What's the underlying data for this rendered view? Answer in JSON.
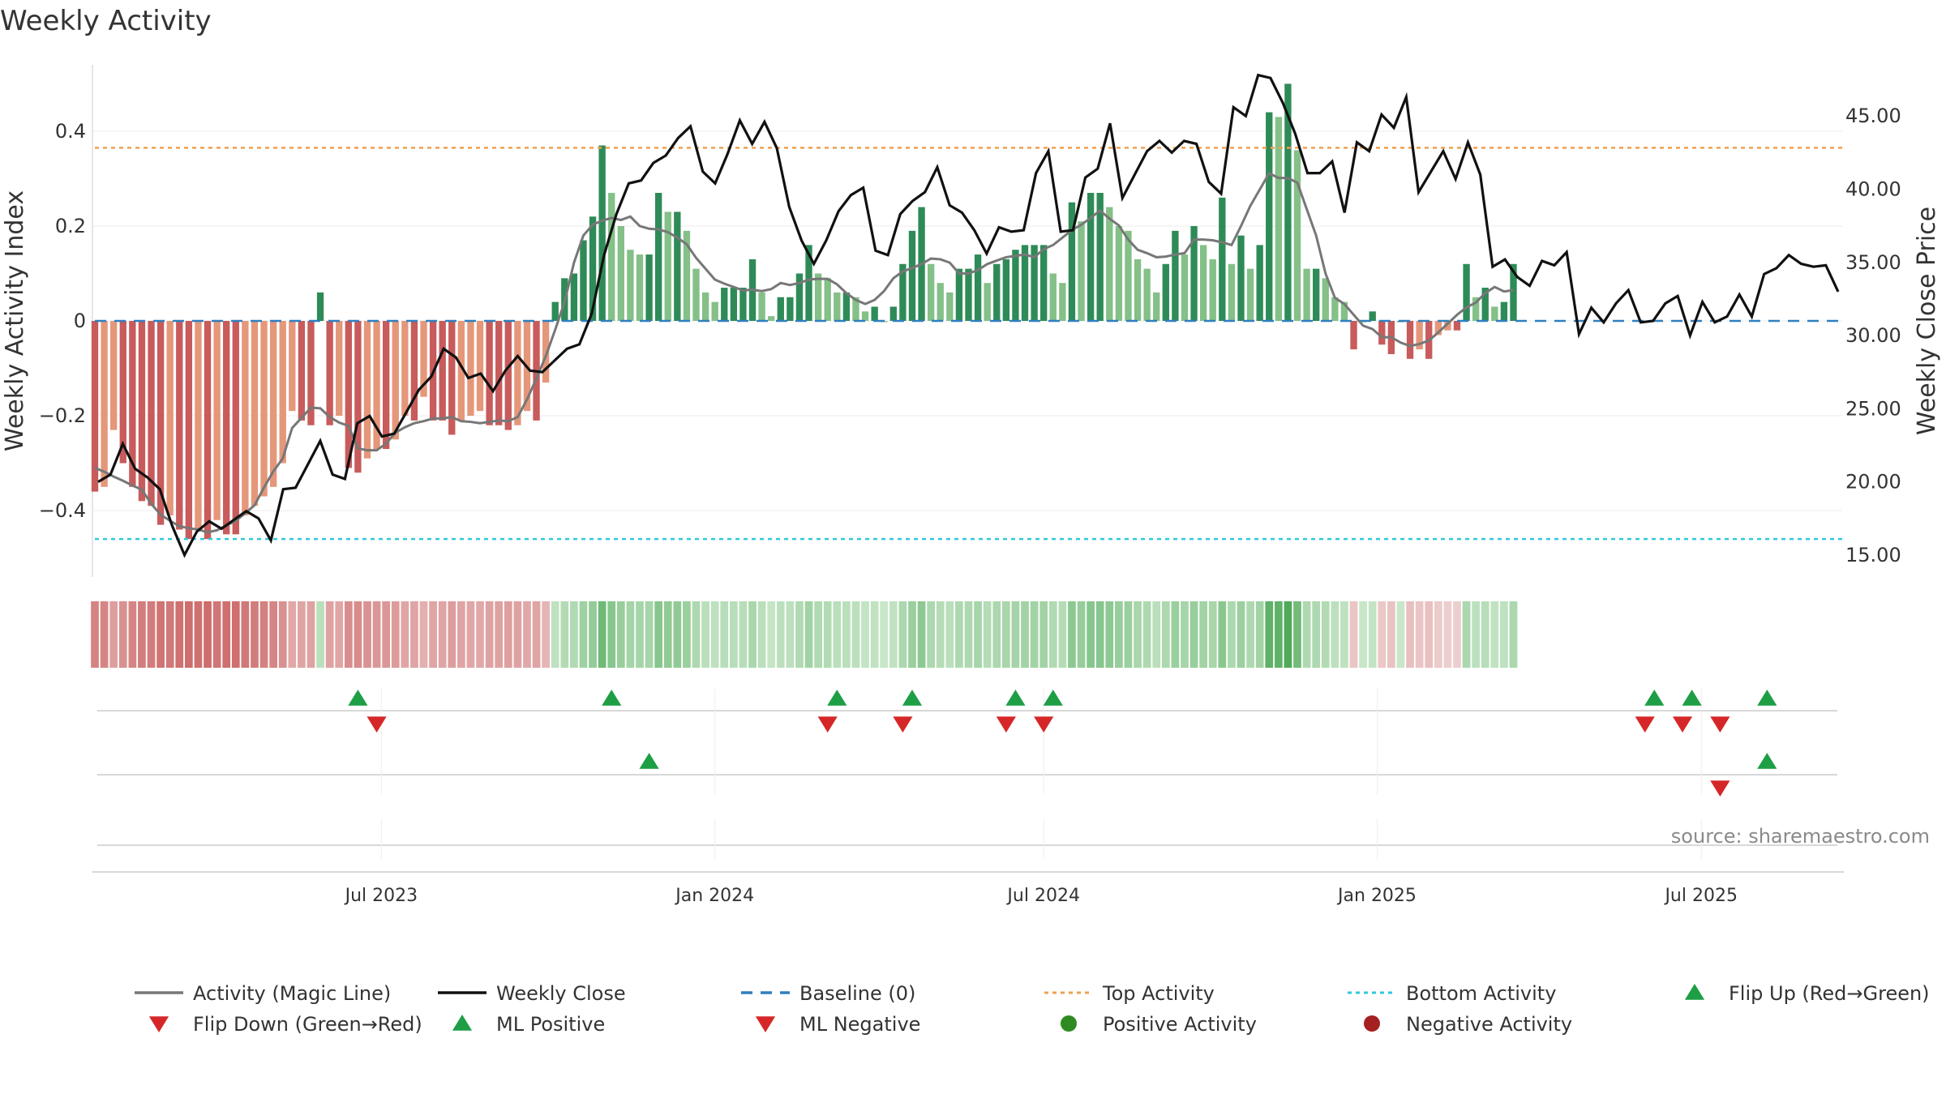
{
  "title": "Weekly Activity",
  "source": "source: sharemaestro.com",
  "chart_data": {
    "type": "bar",
    "y_left": {
      "label": "Weekly Activity Index",
      "range": [
        -0.54,
        0.54
      ],
      "ticks": [
        {
          "v": 0.4,
          "t": "0.4"
        },
        {
          "v": 0.2,
          "t": "0.2"
        },
        {
          "v": 0,
          "t": "0"
        },
        {
          "v": -0.2,
          "t": "−0.2"
        },
        {
          "v": -0.4,
          "t": "−0.4"
        }
      ]
    },
    "y_right": {
      "label": "Weekly Close Price",
      "range": [
        13.5,
        48.5
      ],
      "ticks": [
        {
          "v": 45,
          "t": "45.00"
        },
        {
          "v": 40,
          "t": "40.00"
        },
        {
          "v": 35,
          "t": "35.00"
        },
        {
          "v": 30,
          "t": "30.00"
        },
        {
          "v": 25,
          "t": "25.00"
        },
        {
          "v": 20,
          "t": "20.00"
        },
        {
          "v": 15,
          "t": "15.00"
        }
      ]
    },
    "x_ticks": [
      {
        "i": 30.5,
        "t": "Jul 2023"
      },
      {
        "i": 66,
        "t": "Jan 2024"
      },
      {
        "i": 101,
        "t": "Jul 2024"
      },
      {
        "i": 136.5,
        "t": "Jan 2025"
      },
      {
        "i": 171,
        "t": "Jul 2025"
      }
    ],
    "weeks": 187,
    "top_activity": 0.365,
    "bottom_activity": -0.46,
    "activity": [
      -0.36,
      -0.35,
      -0.23,
      -0.3,
      -0.35,
      -0.38,
      -0.39,
      -0.43,
      -0.41,
      -0.44,
      -0.46,
      -0.44,
      -0.46,
      -0.42,
      -0.45,
      -0.45,
      -0.41,
      -0.39,
      -0.37,
      -0.35,
      -0.3,
      -0.19,
      -0.21,
      -0.22,
      0.06,
      -0.22,
      -0.2,
      -0.31,
      -0.32,
      -0.29,
      -0.27,
      -0.27,
      -0.25,
      -0.2,
      -0.21,
      -0.16,
      -0.21,
      -0.21,
      -0.24,
      -0.21,
      -0.2,
      -0.19,
      -0.22,
      -0.22,
      -0.23,
      -0.22,
      -0.19,
      -0.21,
      -0.13,
      0.04,
      0.09,
      0.1,
      0.17,
      0.22,
      0.37,
      0.27,
      0.2,
      0.15,
      0.14,
      0.14,
      0.27,
      0.23,
      0.23,
      0.19,
      0.11,
      0.06,
      0.04,
      0.07,
      0.07,
      0.07,
      0.13,
      0.06,
      0.01,
      0.05,
      0.05,
      0.1,
      0.16,
      0.1,
      0.09,
      0.06,
      0.06,
      0.05,
      0.02,
      0.03,
      0.0,
      0.03,
      0.12,
      0.19,
      0.24,
      0.12,
      0.08,
      0.06,
      0.11,
      0.11,
      0.14,
      0.08,
      0.12,
      0.13,
      0.15,
      0.16,
      0.16,
      0.16,
      0.1,
      0.08,
      0.25,
      0.21,
      0.27,
      0.27,
      0.24,
      0.2,
      0.19,
      0.13,
      0.11,
      0.06,
      0.12,
      0.19,
      0.14,
      0.2,
      0.16,
      0.13,
      0.26,
      0.12,
      0.18,
      0.11,
      0.16,
      0.44,
      0.43,
      0.5,
      0.36,
      0.11,
      0.11,
      0.09,
      0.05,
      0.04,
      -0.06,
      0.0,
      0.02,
      -0.05,
      -0.07,
      0.0,
      -0.08,
      -0.06,
      -0.08,
      -0.03,
      -0.02,
      -0.02,
      0.12,
      0.05,
      0.07,
      0.03,
      0.04,
      0.12
    ],
    "colors": {
      "green_dark": "#2e8b57",
      "green_light": "#84c088",
      "red_dark": "#c85b5b",
      "red_light": "#e5977a",
      "close": "#111111",
      "magic": "#777777",
      "baseline": "#2f7fbf",
      "top": "#f0a050",
      "bottom": "#30c8e0",
      "up": "#1e9e45",
      "down": "#d62728"
    }
  },
  "markers": {
    "flip_up": [
      28,
      55,
      79,
      87,
      98,
      102,
      166,
      170,
      178
    ],
    "flip_down": [
      30,
      78,
      86,
      97,
      101,
      165,
      169,
      173
    ],
    "ml_up": [
      59,
      178
    ],
    "ml_down": [
      173
    ]
  },
  "legend": [
    {
      "label": "Activity (Magic Line)",
      "kind": "line",
      "color": "#777777"
    },
    {
      "label": "Weekly Close",
      "kind": "line",
      "color": "#111111"
    },
    {
      "label": "Baseline (0)",
      "kind": "dash",
      "color": "#2f7fbf"
    },
    {
      "label": "Top Activity",
      "kind": "dot",
      "color": "#f0a050"
    },
    {
      "label": "Bottom Activity",
      "kind": "dot",
      "color": "#30c8e0"
    },
    {
      "label": "Flip Up (Red→Green)",
      "kind": "tri-up",
      "color": "#1e9e45"
    },
    {
      "label": "Flip Down (Green→Red)",
      "kind": "tri-down",
      "color": "#d62728"
    },
    {
      "label": "ML Positive",
      "kind": "tri-up",
      "color": "#1e9e45"
    },
    {
      "label": "ML Negative",
      "kind": "tri-down",
      "color": "#d62728"
    },
    {
      "label": "Positive Activity",
      "kind": "circle",
      "color": "#2e8b22"
    },
    {
      "label": "Negative Activity",
      "kind": "circle",
      "color": "#a52020"
    }
  ]
}
